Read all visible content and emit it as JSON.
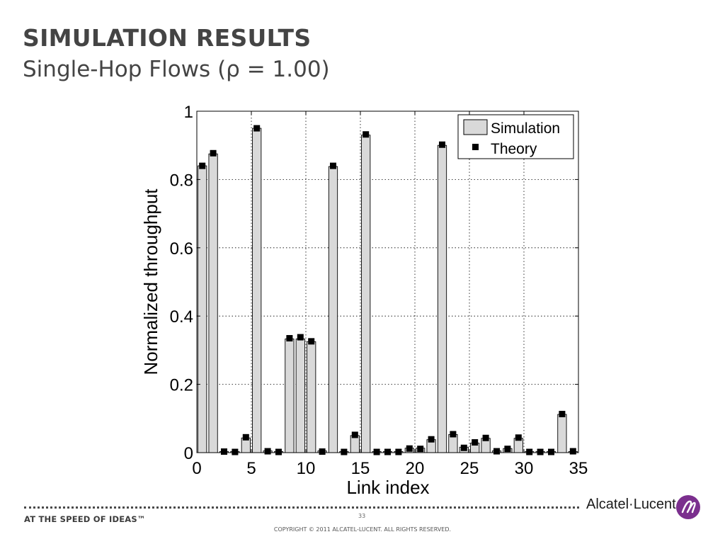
{
  "slide": {
    "title": "SIMULATION RESULTS",
    "subtitle": "Single-Hop Flows (ρ = 1.00)"
  },
  "footer": {
    "tagline": "AT THE SPEED OF IDEAS™",
    "page_number": "33",
    "copyright": "COPYRIGHT © 2011 ALCATEL-LUCENT.  ALL RIGHTS RESERVED.",
    "brand": "Alcatel·Lucent",
    "logo_color": "#7b2f8e"
  },
  "chart_data": {
    "type": "bar",
    "xlabel": "Link index",
    "ylabel": "Normalized throughput",
    "xlim": [
      0,
      35
    ],
    "ylim": [
      0,
      1
    ],
    "xticks": [
      0,
      5,
      10,
      15,
      20,
      25,
      30,
      35
    ],
    "yticks": [
      0,
      0.2,
      0.4,
      0.6,
      0.8,
      1
    ],
    "ytick_labels": [
      "0",
      "0.2",
      "0.4",
      "0.6",
      "0.8",
      "1"
    ],
    "grid": true,
    "legend_position": "top-right",
    "bar_color": "#d9d9d9",
    "marker_color": "#000000",
    "x": [
      0,
      1,
      2,
      3,
      4,
      5,
      6,
      7,
      8,
      9,
      10,
      11,
      12,
      13,
      14,
      15,
      16,
      17,
      18,
      19,
      20,
      21,
      22,
      23,
      24,
      25,
      26,
      27,
      28,
      29,
      30,
      31,
      32,
      33,
      34
    ],
    "series": [
      {
        "name": "Simulation",
        "style": "bar",
        "values": [
          0.84,
          0.875,
          0.003,
          0.003,
          0.043,
          0.95,
          0.005,
          0.003,
          0.333,
          0.333,
          0.325,
          0.005,
          0.838,
          0.003,
          0.05,
          0.93,
          0.003,
          0.003,
          0.003,
          0.013,
          0.013,
          0.038,
          0.9,
          0.053,
          0.016,
          0.028,
          0.042,
          0.005,
          0.012,
          0.042,
          0.003,
          0.003,
          0.003,
          0.112,
          0.003
        ]
      },
      {
        "name": "Theory",
        "style": "marker",
        "values": [
          0.84,
          0.877,
          0.003,
          0.002,
          0.045,
          0.95,
          0.004,
          0.002,
          0.335,
          0.338,
          0.326,
          0.003,
          0.84,
          0.002,
          0.052,
          0.932,
          0.002,
          0.002,
          0.002,
          0.012,
          0.011,
          0.039,
          0.902,
          0.054,
          0.014,
          0.03,
          0.043,
          0.004,
          0.011,
          0.044,
          0.002,
          0.002,
          0.002,
          0.113,
          0.004
        ]
      }
    ]
  }
}
